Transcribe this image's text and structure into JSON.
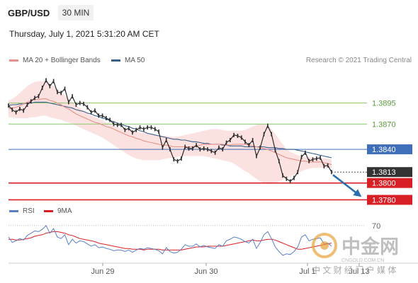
{
  "header": {
    "symbol": "GBP/USD",
    "timeframe": "30 MIN",
    "datetime": "Thursday, July 1, 2021 5:31:20 AM CET"
  },
  "credit": "Research © 2021 Trading Central",
  "legend_main": [
    {
      "label": "MA 20 + Bollinger Bands",
      "color": "#e8928a"
    },
    {
      "label": "MA 50",
      "color": "#3a5f8a"
    }
  ],
  "legend_rsi": [
    {
      "label": "RSI",
      "color": "#5b7fc4"
    },
    {
      "label": "9MA",
      "color": "#d91f26"
    }
  ],
  "watermark": {
    "name": "中金网",
    "domain": "CNGOLD.COM.CN",
    "slogan": "中 文 财 经 门 户 媒 体"
  },
  "chart_data": {
    "type": "line",
    "x_ticks": [
      "Jun 29",
      "Jun 30",
      "Jul 1",
      "Jul 13"
    ],
    "levels": [
      {
        "value": 1.3895,
        "label": "1.3895",
        "style": "resistance"
      },
      {
        "value": 1.387,
        "label": "1.3870",
        "style": "resistance"
      },
      {
        "value": 1.384,
        "label": "1.3840",
        "style": "ma50"
      },
      {
        "value": 1.3813,
        "label": "1.3813",
        "style": "last"
      },
      {
        "value": 1.38,
        "label": "1.3800",
        "style": "support"
      },
      {
        "value": 1.378,
        "label": "1.3780",
        "style": "support"
      }
    ],
    "price_ylim": [
      1.3772,
      1.3935
    ],
    "price": [
      1.3892,
      1.3887,
      1.3884,
      1.3888,
      1.3886,
      1.3893,
      1.3897,
      1.3901,
      1.3903,
      1.3913,
      1.3922,
      1.3915,
      1.3921,
      1.3908,
      1.3907,
      1.3912,
      1.3896,
      1.3903,
      1.3893,
      1.3895,
      1.3894,
      1.389,
      1.3884,
      1.3886,
      1.388,
      1.388,
      1.3877,
      1.3875,
      1.387,
      1.3869,
      1.3869,
      1.3863,
      1.3865,
      1.386,
      1.3863,
      1.3866,
      1.3864,
      1.3866,
      1.3866,
      1.3864,
      1.3861,
      1.3842,
      1.3851,
      1.384,
      1.3828,
      1.3826,
      1.3829,
      1.3843,
      1.3841,
      1.3841,
      1.3845,
      1.384,
      1.3841,
      1.384,
      1.3838,
      1.3836,
      1.3842,
      1.384,
      1.3848,
      1.3851,
      1.3857,
      1.3856,
      1.3854,
      1.3849,
      1.3845,
      1.3851,
      1.3832,
      1.3842,
      1.3858,
      1.3868,
      1.3858,
      1.3839,
      1.3826,
      1.3809,
      1.3805,
      1.3802,
      1.3806,
      1.3813,
      1.3831,
      1.3836,
      1.3826,
      1.3828,
      1.3829,
      1.383,
      1.382,
      1.3821,
      1.3813
    ],
    "ma20": [
      1.3888,
      1.3889,
      1.389,
      1.3892,
      1.3894,
      1.3896,
      1.3898,
      1.3899,
      1.3899,
      1.39,
      1.39,
      1.3898,
      1.3897,
      1.3895,
      1.3893,
      1.389,
      1.3888,
      1.3885,
      1.3882,
      1.388,
      1.3878,
      1.3876,
      1.3874,
      1.3872,
      1.3871,
      1.3869,
      1.3867,
      1.3866,
      1.3864,
      1.3862,
      1.386,
      1.3858,
      1.3856,
      1.3855,
      1.3853,
      1.3852,
      1.385,
      1.3849,
      1.3848,
      1.3847,
      1.3846,
      1.3845,
      1.3845,
      1.3844,
      1.3843,
      1.3843,
      1.3843,
      1.3843,
      1.3843,
      1.3843,
      1.3844,
      1.3845,
      1.3846,
      1.3846,
      1.3846,
      1.3846,
      1.3846,
      1.3846,
      1.3845,
      1.3845,
      1.3846,
      1.3846,
      1.3846,
      1.3846,
      1.3845,
      1.3844,
      1.3843,
      1.3842,
      1.3841,
      1.384,
      1.3838,
      1.3836,
      1.3834,
      1.3832,
      1.383,
      1.3829,
      1.3828,
      1.3827,
      1.3826,
      1.3826,
      1.3825,
      1.3825,
      1.3825,
      1.3825,
      1.3824,
      1.3823,
      1.3822
    ],
    "bb_upper": [
      1.3898,
      1.39,
      1.3903,
      1.3907,
      1.3911,
      1.3915,
      1.3918,
      1.392,
      1.3921,
      1.3921,
      1.392,
      1.3918,
      1.3915,
      1.3912,
      1.3908,
      1.3904,
      1.39,
      1.3896,
      1.3892,
      1.3889,
      1.3886,
      1.3883,
      1.388,
      1.3878,
      1.3876,
      1.3874,
      1.3872,
      1.387,
      1.3868,
      1.3866,
      1.3865,
      1.3864,
      1.3863,
      1.3862,
      1.3861,
      1.386,
      1.386,
      1.3859,
      1.3858,
      1.3857,
      1.3857,
      1.3856,
      1.3856,
      1.3855,
      1.3855,
      1.3855,
      1.3856,
      1.3857,
      1.3858,
      1.3859,
      1.386,
      1.3861,
      1.3862,
      1.3863,
      1.3864,
      1.3864,
      1.3864,
      1.3863,
      1.3862,
      1.3862,
      1.3862,
      1.3862,
      1.3862,
      1.3863,
      1.3865,
      1.3867,
      1.3869,
      1.387,
      1.387,
      1.3868,
      1.3864,
      1.3858,
      1.3852,
      1.3846,
      1.384,
      1.3837,
      1.3835,
      1.3833,
      1.3832,
      1.3831,
      1.3831,
      1.383,
      1.383,
      1.383,
      1.3829,
      1.3829,
      1.3828
    ],
    "bb_lower": [
      1.3878,
      1.3878,
      1.3877,
      1.3877,
      1.3877,
      1.3877,
      1.3878,
      1.3878,
      1.3879,
      1.388,
      1.388,
      1.3878,
      1.3877,
      1.3876,
      1.3875,
      1.3873,
      1.3872,
      1.387,
      1.3868,
      1.3866,
      1.3864,
      1.3862,
      1.386,
      1.3858,
      1.3856,
      1.3854,
      1.3851,
      1.3848,
      1.3845,
      1.3842,
      1.3839,
      1.3836,
      1.3833,
      1.3831,
      1.3829,
      1.3828,
      1.3827,
      1.3827,
      1.3827,
      1.3827,
      1.3827,
      1.3828,
      1.3829,
      1.383,
      1.383,
      1.3831,
      1.3832,
      1.3832,
      1.3832,
      1.3832,
      1.3832,
      1.3832,
      1.3832,
      1.3831,
      1.383,
      1.3829,
      1.3828,
      1.3827,
      1.3826,
      1.3825,
      1.3823,
      1.382,
      1.3817,
      1.3814,
      1.3812,
      1.3808,
      1.3805,
      1.3802,
      1.38,
      1.3799,
      1.3799,
      1.38,
      1.3802,
      1.3804,
      1.3806,
      1.3808,
      1.381,
      1.3812,
      1.3814,
      1.3816,
      1.3817,
      1.3818,
      1.3818,
      1.3818,
      1.3818,
      1.3818,
      1.3818
    ],
    "ma50": [
      1.3892,
      1.3893,
      1.3893,
      1.3894,
      1.3894,
      1.3895,
      1.3895,
      1.3896,
      1.3896,
      1.3896,
      1.3896,
      1.3895,
      1.3894,
      1.3893,
      1.3892,
      1.3891,
      1.389,
      1.3889,
      1.3887,
      1.3886,
      1.3885,
      1.3883,
      1.3882,
      1.388,
      1.3879,
      1.3877,
      1.3876,
      1.3874,
      1.3873,
      1.3871,
      1.387,
      1.3868,
      1.3867,
      1.3865,
      1.3864,
      1.3862,
      1.3861,
      1.3859,
      1.3858,
      1.3857,
      1.3856,
      1.3855,
      1.3854,
      1.3853,
      1.3852,
      1.3852,
      1.3851,
      1.3851,
      1.385,
      1.3849,
      1.3849,
      1.3848,
      1.3847,
      1.3847,
      1.3846,
      1.3846,
      1.3846,
      1.3845,
      1.3845,
      1.3844,
      1.3844,
      1.3844,
      1.3844,
      1.3843,
      1.3843,
      1.3843,
      1.3843,
      1.3843,
      1.3843,
      1.3842,
      1.3842,
      1.3842,
      1.3841,
      1.3841,
      1.384,
      1.384,
      1.384,
      1.3839,
      1.3838,
      1.3837,
      1.3836,
      1.3835,
      1.3834,
      1.3833,
      1.3832,
      1.3831,
      1.383
    ],
    "forecast": {
      "from": 1.3813,
      "to": 1.378
    },
    "rsi_level": {
      "value": 70,
      "label": "70"
    },
    "rsi_ylim": [
      30,
      80
    ],
    "rsi": [
      55,
      48,
      50,
      53,
      51,
      57,
      60,
      63,
      62,
      65,
      70,
      60,
      66,
      55,
      53,
      58,
      45,
      52,
      47,
      50,
      49,
      46,
      43,
      45,
      41,
      42,
      40,
      39,
      37,
      38,
      38,
      36,
      38,
      35,
      38,
      40,
      39,
      41,
      40,
      39,
      37,
      33,
      41,
      36,
      34,
      35,
      39,
      45,
      43,
      43,
      46,
      42,
      44,
      42,
      41,
      40,
      45,
      43,
      50,
      52,
      55,
      54,
      52,
      49,
      47,
      52,
      40,
      48,
      58,
      62,
      53,
      42,
      36,
      31,
      33,
      32,
      36,
      42,
      55,
      58,
      50,
      52,
      53,
      54,
      46,
      47,
      43
    ],
    "rsi_ma9": [
      52,
      52,
      51,
      51,
      52,
      53,
      54,
      56,
      57,
      58,
      60,
      61,
      62,
      62,
      61,
      60,
      58,
      57,
      55,
      53,
      52,
      51,
      50,
      49,
      47,
      46,
      45,
      44,
      43,
      42,
      41,
      40,
      40,
      39,
      39,
      39,
      38,
      39,
      39,
      39,
      39,
      38,
      38,
      38,
      38,
      38,
      38,
      39,
      40,
      41,
      42,
      42,
      42,
      43,
      43,
      43,
      43,
      43,
      44,
      45,
      46,
      47,
      48,
      49,
      50,
      51,
      50,
      50,
      51,
      52,
      52,
      51,
      49,
      47,
      45,
      43,
      41,
      39,
      39,
      40,
      41,
      42,
      43,
      44,
      45,
      46,
      47
    ]
  }
}
